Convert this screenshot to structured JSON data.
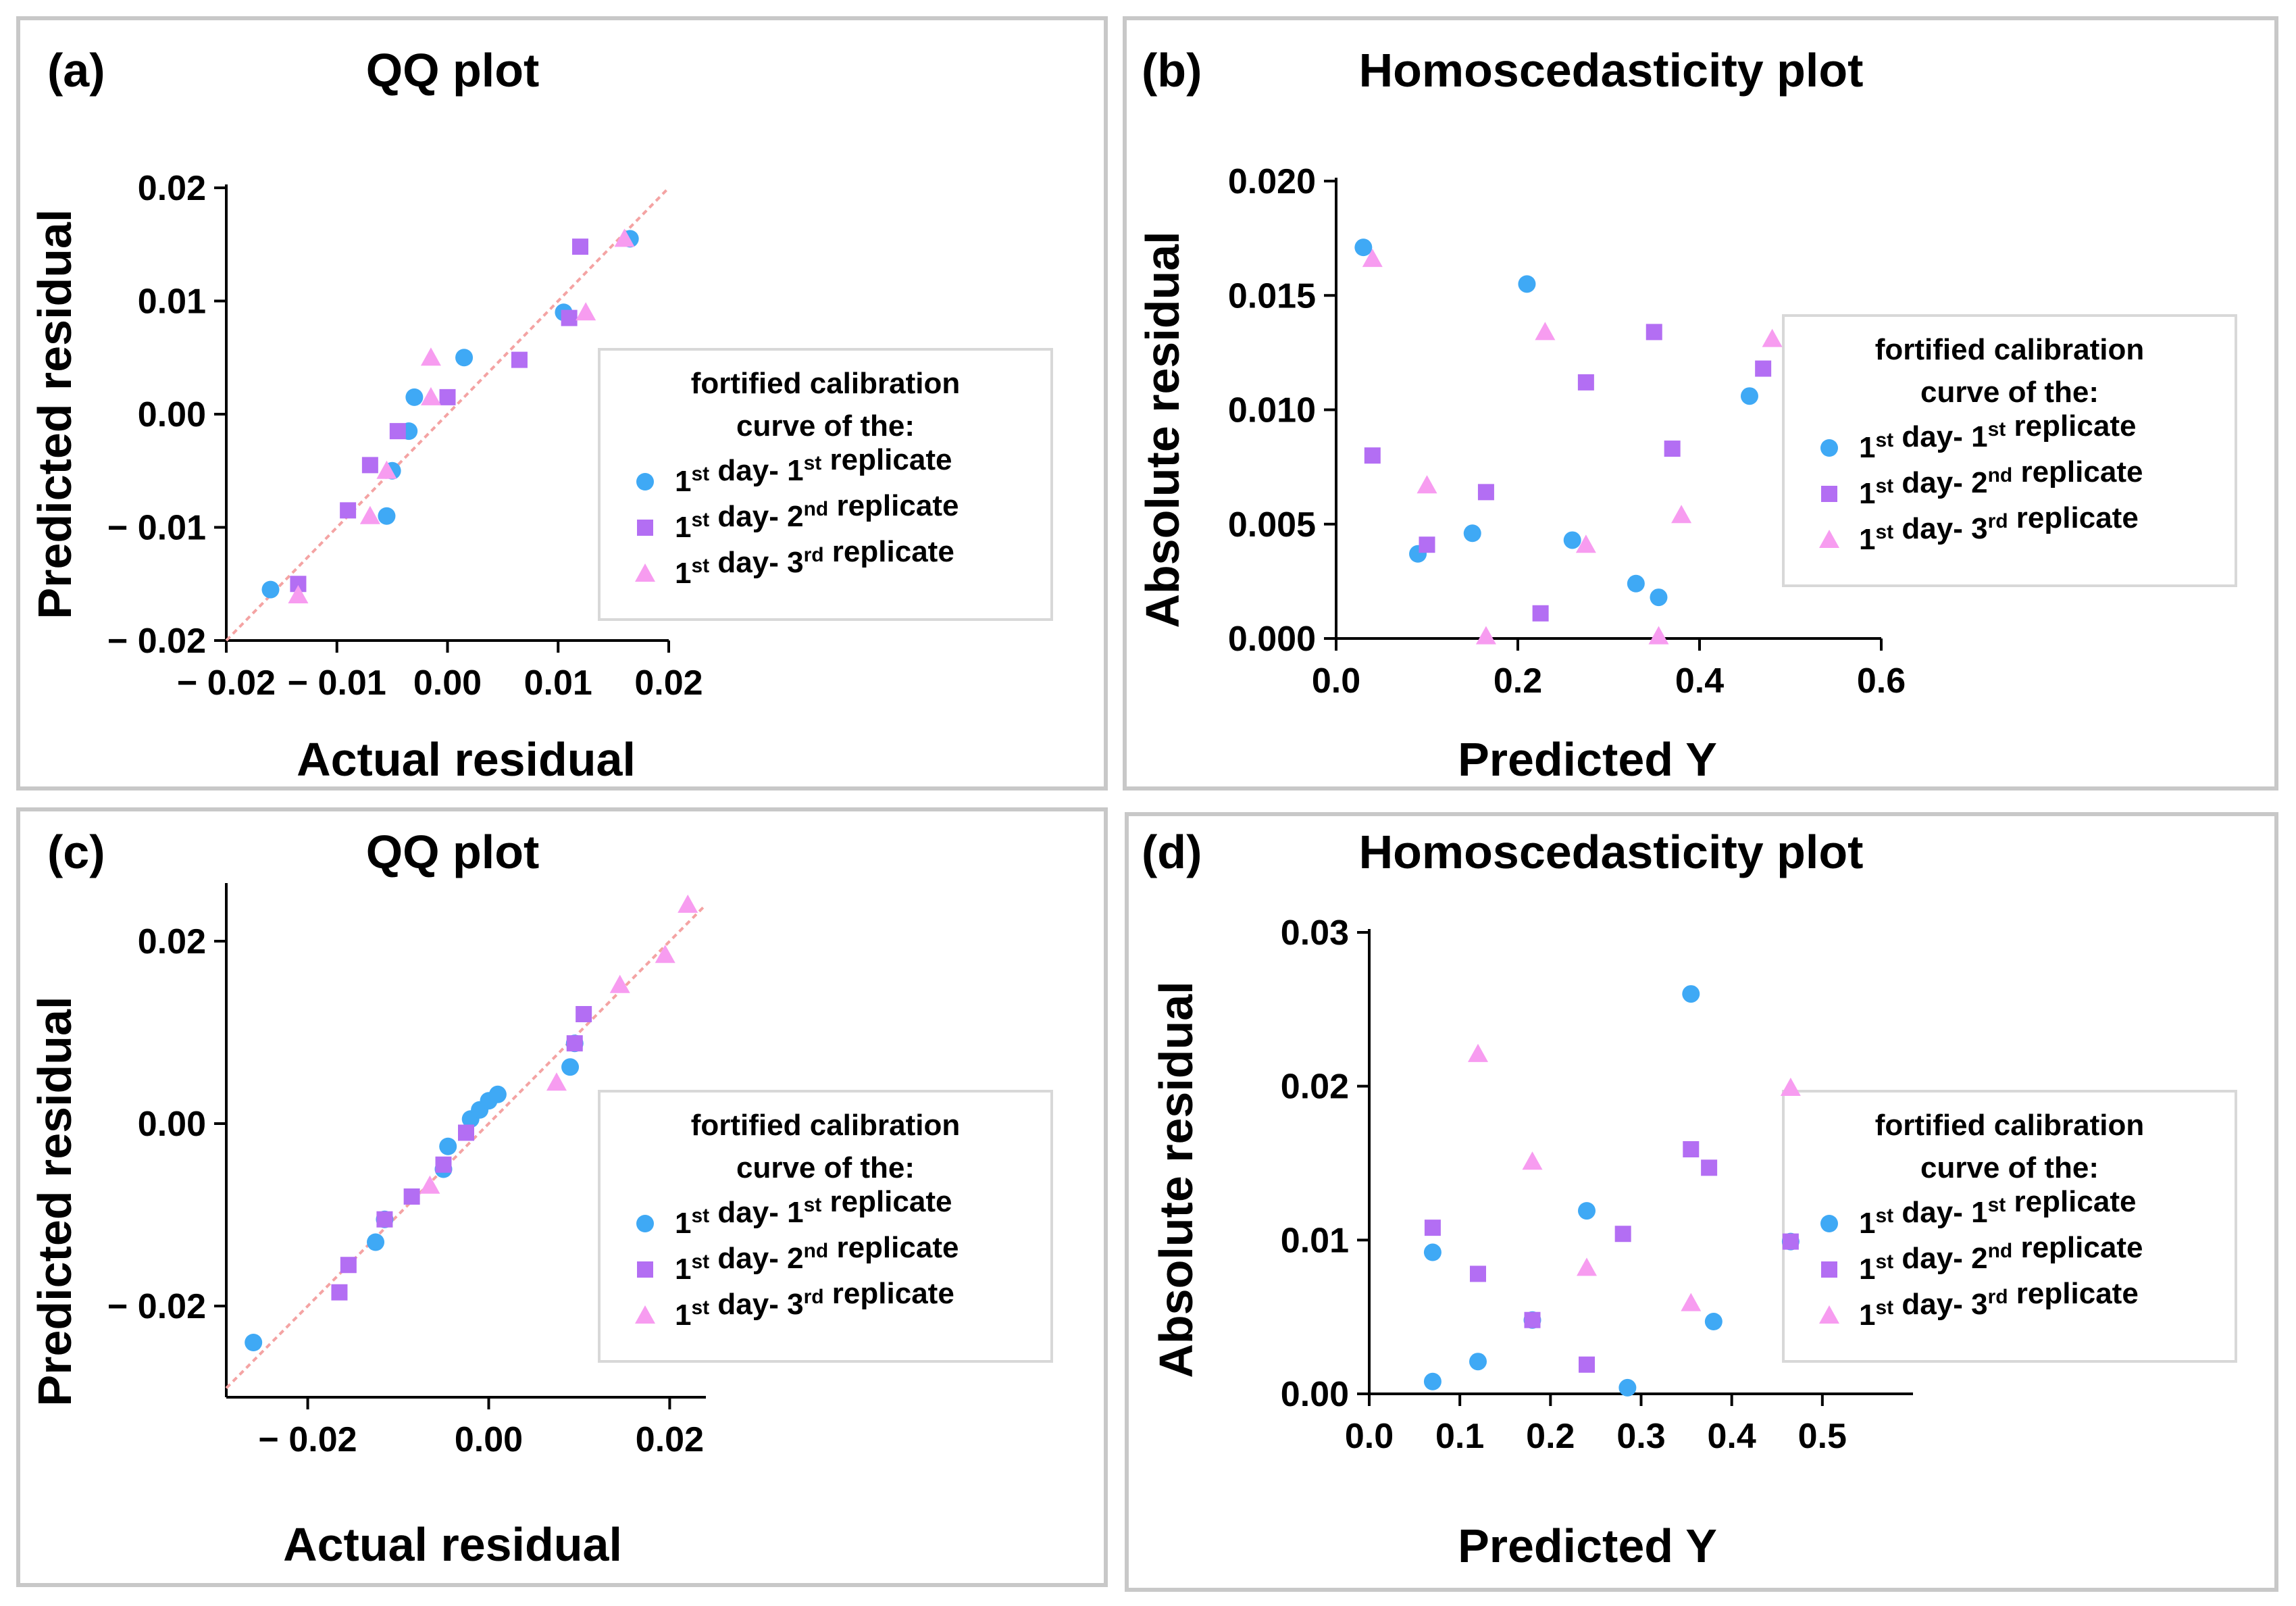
{
  "colors": {
    "series1": "#3fa9f5",
    "series2": "#b36ef3",
    "series3": "#f79cf0",
    "reference_line": "#f4a3a3"
  },
  "legend": {
    "heading_line1": "fortified calibration",
    "heading_line2": "curve of the:",
    "entries": [
      {
        "ord": "1",
        "sup1": "st",
        "mid": " day- ",
        "ord2": "1",
        "sup2": "st",
        "tail": " replicate",
        "marker": "circle"
      },
      {
        "ord": "1",
        "sup1": "st",
        "mid": " day- ",
        "ord2": "2",
        "sup2": "nd",
        "tail": " replicate",
        "marker": "square"
      },
      {
        "ord": "1",
        "sup1": "st",
        "mid": " day- ",
        "ord2": "3",
        "sup2": "rd",
        "tail": " replicate",
        "marker": "triangle"
      }
    ]
  },
  "chart_data": [
    {
      "panel": "(a)",
      "title": "QQ plot",
      "type": "scatter",
      "xlabel": "Actual residual",
      "ylabel": "Predicted residual",
      "xlim": [
        -0.02,
        0.02
      ],
      "ylim": [
        -0.02,
        0.02
      ],
      "xticks": [
        -0.02,
        -0.01,
        0.0,
        0.01,
        0.02
      ],
      "xtick_labels": [
        "− 0.02",
        "− 0.01",
        "0.00",
        "0.01",
        "0.02"
      ],
      "yticks": [
        0.02,
        0.01,
        0.0,
        -0.01,
        -0.02
      ],
      "ytick_labels": [
        "0.02",
        "0.01",
        "0.00",
        "− 0.01",
        "− 0.02"
      ],
      "reference_line": {
        "x": [
          -0.02,
          0.02
        ],
        "y": [
          -0.02,
          0.02
        ]
      },
      "series": [
        {
          "name": "1st day- 1st replicate",
          "marker": "circle",
          "x": [
            -0.016,
            -0.0055,
            -0.005,
            -0.0035,
            -0.003,
            0.0015,
            0.0105,
            0.0165
          ],
          "y": [
            -0.0155,
            -0.009,
            -0.005,
            -0.0015,
            0.0015,
            0.005,
            0.009,
            0.0155
          ]
        },
        {
          "name": "1st day- 2nd replicate",
          "marker": "square",
          "x": [
            -0.0135,
            -0.009,
            -0.007,
            -0.0045,
            0.0,
            0.0065,
            0.011,
            0.012
          ],
          "y": [
            -0.015,
            -0.0085,
            -0.0045,
            -0.0015,
            0.0015,
            0.0048,
            0.0085,
            0.0148
          ]
        },
        {
          "name": "1st day- 3rd replicate",
          "marker": "triangle",
          "x": [
            -0.0135,
            -0.007,
            -0.0055,
            -0.0015,
            -0.0015,
            0.0125,
            0.016
          ],
          "y": [
            -0.016,
            -0.009,
            -0.005,
            0.0015,
            0.005,
            0.009,
            0.0155
          ]
        }
      ]
    },
    {
      "panel": "(b)",
      "title": "Homoscedasticity plot",
      "type": "scatter",
      "xlabel": "Predicted Y",
      "ylabel": "Absolute residual",
      "xlim": [
        0.0,
        0.6
      ],
      "ylim": [
        0.0,
        0.02
      ],
      "xticks": [
        0.0,
        0.2,
        0.4,
        0.6
      ],
      "xtick_labels": [
        "0.0",
        "0.2",
        "0.4",
        "0.6"
      ],
      "yticks": [
        0.02,
        0.015,
        0.01,
        0.005,
        0.0
      ],
      "ytick_labels": [
        "0.020",
        "0.015",
        "0.010",
        "0.005",
        "0.000"
      ],
      "series": [
        {
          "name": "1st day- 1st replicate",
          "marker": "circle",
          "x": [
            0.03,
            0.09,
            0.15,
            0.21,
            0.26,
            0.33,
            0.355,
            0.455
          ],
          "y": [
            0.0171,
            0.0037,
            0.0046,
            0.0155,
            0.0043,
            0.0024,
            0.0018,
            0.0106
          ]
        },
        {
          "name": "1st day- 2nd replicate",
          "marker": "square",
          "x": [
            0.04,
            0.1,
            0.165,
            0.225,
            0.275,
            0.35,
            0.37,
            0.47
          ],
          "y": [
            0.008,
            0.0041,
            0.0064,
            0.0011,
            0.0112,
            0.0134,
            0.0083,
            0.0118
          ]
        },
        {
          "name": "1st day- 3rd replicate",
          "marker": "triangle",
          "x": [
            0.04,
            0.1,
            0.165,
            0.23,
            0.275,
            0.355,
            0.38,
            0.48
          ],
          "y": [
            0.0166,
            0.0067,
            0.0001,
            0.0134,
            0.0041,
            0.0001,
            0.0054,
            0.0131
          ]
        }
      ]
    },
    {
      "panel": "(c)",
      "title": "QQ plot",
      "type": "scatter",
      "xlabel": "Actual residual",
      "ylabel": "Predicted residual",
      "xlim": [
        -0.029,
        0.024
      ],
      "ylim": [
        -0.03,
        0.026
      ],
      "xticks": [
        -0.02,
        0.0,
        0.02
      ],
      "xtick_labels": [
        "− 0.02",
        "0.00",
        "0.02"
      ],
      "yticks": [
        0.02,
        0.0,
        -0.02
      ],
      "ytick_labels": [
        "0.02",
        "0.00",
        "− 0.02"
      ],
      "reference_line": {
        "x": [
          -0.029,
          0.024
        ],
        "y": [
          -0.029,
          0.024
        ]
      },
      "series": [
        {
          "name": "1st day- 1st replicate",
          "marker": "circle",
          "x": [
            -0.026,
            -0.0125,
            -0.0115,
            -0.005,
            -0.0045,
            -0.002,
            -0.001,
            0.0,
            0.001,
            0.009,
            0.0095
          ],
          "y": [
            -0.024,
            -0.013,
            -0.0105,
            -0.005,
            -0.0025,
            0.0005,
            0.0015,
            0.0025,
            0.0032,
            0.0062,
            0.0088
          ]
        },
        {
          "name": "1st day- 2nd replicate",
          "marker": "square",
          "x": [
            -0.0165,
            -0.0155,
            -0.0115,
            -0.0085,
            -0.005,
            -0.0025,
            0.0095,
            0.0105
          ],
          "y": [
            -0.0185,
            -0.0155,
            -0.0105,
            -0.008,
            -0.0045,
            -0.001,
            0.0088,
            0.012
          ]
        },
        {
          "name": "1st day- 3rd replicate",
          "marker": "triangle",
          "x": [
            -0.0065,
            0.0075,
            0.0145,
            0.0195,
            0.022
          ],
          "y": [
            -0.0068,
            0.0045,
            0.0152,
            0.0185,
            0.024
          ]
        }
      ]
    },
    {
      "panel": "(d)",
      "title": "Homoscedasticity plot",
      "type": "scatter",
      "xlabel": "Predicted Y",
      "ylabel": "Absolute residual",
      "xlim": [
        0.0,
        0.6
      ],
      "ylim": [
        0.0,
        0.03
      ],
      "xticks": [
        0.0,
        0.1,
        0.2,
        0.3,
        0.4,
        0.5
      ],
      "xtick_labels": [
        "0.0",
        "0.1",
        "0.2",
        "0.3",
        "0.4",
        "0.5"
      ],
      "yticks": [
        0.03,
        0.02,
        0.01,
        0.0
      ],
      "ytick_labels": [
        "0.03",
        "0.02",
        "0.01",
        "0.00"
      ],
      "series": [
        {
          "name": "1st day- 1st replicate",
          "marker": "circle",
          "x": [
            0.07,
            0.07,
            0.12,
            0.18,
            0.24,
            0.285,
            0.355,
            0.38,
            0.465
          ],
          "y": [
            0.0008,
            0.0092,
            0.0021,
            0.0048,
            0.0119,
            0.0004,
            0.026,
            0.0047,
            0.0099
          ]
        },
        {
          "name": "1st day- 2nd replicate",
          "marker": "square",
          "x": [
            0.07,
            0.12,
            0.18,
            0.24,
            0.28,
            0.355,
            0.375,
            0.465
          ],
          "y": [
            0.0108,
            0.0078,
            0.0048,
            0.0019,
            0.0104,
            0.0159,
            0.0147,
            0.0099
          ]
        },
        {
          "name": "1st day- 3rd replicate",
          "marker": "triangle",
          "x": [
            0.12,
            0.18,
            0.24,
            0.355,
            0.465
          ],
          "y": [
            0.0221,
            0.0151,
            0.0082,
            0.0059,
            0.0199
          ]
        }
      ]
    }
  ]
}
